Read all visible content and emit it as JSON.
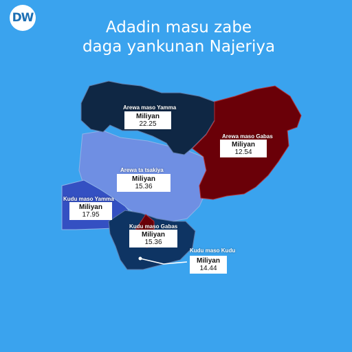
{
  "brand": {
    "logo_text": "DW",
    "logo_color": "#1c6fb4"
  },
  "title": {
    "line1": "Adadin masu zabe",
    "line2": "daga yankunan Najeriya"
  },
  "colors": {
    "background": "#3aa3ee",
    "north_west": "#0f2744",
    "north_east": "#6a0008",
    "north_central": "#6f8fe3",
    "south_west": "#3450c2",
    "south_east": "#6a0008",
    "south": "#0e3463",
    "borders": "#8fb3e8"
  },
  "regions": [
    {
      "id": "north_west",
      "name": "Arewa maso Yamma",
      "unit": "Miliyan",
      "value": "22.25"
    },
    {
      "id": "north_east",
      "name": "Arewa maso Gabas",
      "unit": "Miliyan",
      "value": "12.54"
    },
    {
      "id": "north_central",
      "name": "Arewa ta tsakiya",
      "unit": "Miliyan",
      "value": "15.36"
    },
    {
      "id": "south_west",
      "name": "Kudu maso Yamma",
      "unit": "Miliyan",
      "value": "17.95"
    },
    {
      "id": "south_east",
      "name": "Kudu maso Gabas",
      "unit": "Miliyan",
      "value": "15.36"
    },
    {
      "id": "south_south",
      "name": "Kudu maso Kudu",
      "unit": "Miliyan",
      "value": "14.44"
    }
  ]
}
